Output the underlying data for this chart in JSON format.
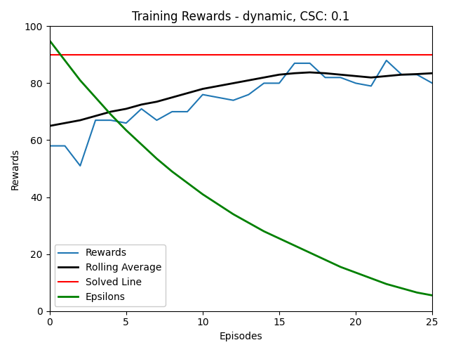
{
  "title": "Training Rewards - dynamic, CSC: 0.1",
  "xlabel": "Episodes",
  "ylabel": "Rewards",
  "solved_line": 90,
  "rewards": [
    58,
    58,
    51,
    67,
    67,
    66,
    71,
    67,
    70,
    70,
    76,
    75,
    74,
    76,
    80,
    80,
    87,
    87,
    82,
    82,
    80,
    79,
    88,
    83,
    83,
    80
  ],
  "rolling_avg_values": [
    65.0,
    66.0,
    67.0,
    68.5,
    70.0,
    71.0,
    72.5,
    73.5,
    75.0,
    76.5,
    78.0,
    79.0,
    80.0,
    81.0,
    82.0,
    83.0,
    83.5,
    83.8,
    83.5,
    83.0,
    82.5,
    82.0,
    82.5,
    83.0,
    83.2,
    83.5
  ],
  "epsilons": [
    95.0,
    88.0,
    81.0,
    75.0,
    69.0,
    63.5,
    58.5,
    53.5,
    49.0,
    45.0,
    41.0,
    37.5,
    34.0,
    31.0,
    28.0,
    25.5,
    23.0,
    20.5,
    18.0,
    15.5,
    13.5,
    11.5,
    9.5,
    8.0,
    6.5,
    5.5
  ],
  "colors": {
    "rewards": "#1f77b4",
    "rolling_avg": "#000000",
    "solved_line": "#ff0000",
    "epsilons": "#008000"
  },
  "xlim": [
    0,
    25
  ],
  "ylim": [
    0,
    100
  ],
  "legend_loc": "lower left",
  "legend_labels": [
    "Rewards",
    "Rolling Average",
    "Solved Line",
    "Epsilons"
  ]
}
